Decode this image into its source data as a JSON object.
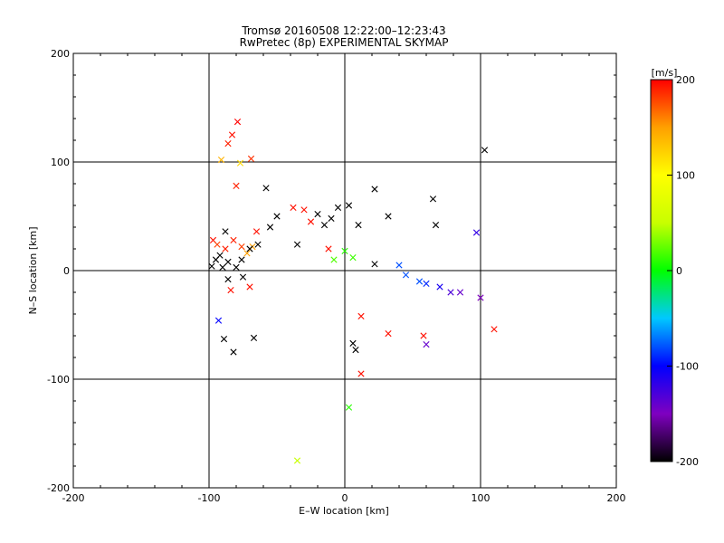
{
  "chart_data": {
    "type": "scatter",
    "title": "Tromsø 20160508 12:22:00–12:23:43",
    "subtitle": "RwPretec (8p) EXPERIMENTAL SKYMAP",
    "xlabel": "E–W location [km]",
    "ylabel": "N–S location [km]",
    "xlim": [
      -200,
      200
    ],
    "ylim": [
      -200,
      200
    ],
    "xticks": [
      "-200",
      "-100",
      "0",
      "100",
      "200"
    ],
    "yticks": [
      "-200",
      "-100",
      "0",
      "100",
      "200"
    ],
    "grid": true,
    "colorbar": {
      "label": "[m/s]",
      "range": [
        -200,
        200
      ],
      "ticks": [
        "-200",
        "-100",
        "0",
        "100",
        "200"
      ],
      "colors": [
        "#000000",
        "#7f00c0",
        "#0000ff",
        "#00c8ff",
        "#00ff00",
        "#c8ff00",
        "#ffff00",
        "#ffa000",
        "#ff0000"
      ]
    },
    "series": [
      {
        "marker": "cross",
        "points": [
          {
            "x": -79,
            "y": 137,
            "v": 200
          },
          {
            "x": -83,
            "y": 125,
            "v": 195
          },
          {
            "x": -86,
            "y": 117,
            "v": 190
          },
          {
            "x": -69,
            "y": 103,
            "v": 185
          },
          {
            "x": -91,
            "y": 102,
            "v": 140
          },
          {
            "x": -77,
            "y": 99,
            "v": 120
          },
          {
            "x": -80,
            "y": 78,
            "v": 190
          },
          {
            "x": -58,
            "y": 76,
            "v": -200
          },
          {
            "x": -38,
            "y": 58,
            "v": 195
          },
          {
            "x": -30,
            "y": 56,
            "v": 195
          },
          {
            "x": -25,
            "y": 45,
            "v": 195
          },
          {
            "x": -20,
            "y": 52,
            "v": -200
          },
          {
            "x": -5,
            "y": 58,
            "v": -200
          },
          {
            "x": 3,
            "y": 60,
            "v": -200
          },
          {
            "x": 22,
            "y": 75,
            "v": -200
          },
          {
            "x": 65,
            "y": 66,
            "v": -200
          },
          {
            "x": 103,
            "y": 111,
            "v": -200
          },
          {
            "x": 97,
            "y": 35,
            "v": -120
          },
          {
            "x": -50,
            "y": 50,
            "v": -200
          },
          {
            "x": -55,
            "y": 40,
            "v": -200
          },
          {
            "x": -65,
            "y": 36,
            "v": 195
          },
          {
            "x": -15,
            "y": 42,
            "v": -200
          },
          {
            "x": -10,
            "y": 48,
            "v": -200
          },
          {
            "x": 10,
            "y": 42,
            "v": -200
          },
          {
            "x": 32,
            "y": 50,
            "v": -200
          },
          {
            "x": 67,
            "y": 42,
            "v": -200
          },
          {
            "x": -12,
            "y": 20,
            "v": 195
          },
          {
            "x": -35,
            "y": 24,
            "v": -200
          },
          {
            "x": 22,
            "y": 6,
            "v": -200
          },
          {
            "x": 40,
            "y": 5,
            "v": -80
          },
          {
            "x": 45,
            "y": -4,
            "v": -80
          },
          {
            "x": 55,
            "y": -10,
            "v": -80
          },
          {
            "x": 60,
            "y": -12,
            "v": -90
          },
          {
            "x": 70,
            "y": -15,
            "v": -110
          },
          {
            "x": 85,
            "y": -20,
            "v": -140
          },
          {
            "x": 100,
            "y": -25,
            "v": -150
          },
          {
            "x": 78,
            "y": -20,
            "v": -130
          },
          {
            "x": -68,
            "y": 22,
            "v": 150
          },
          {
            "x": -72,
            "y": 16,
            "v": 150
          },
          {
            "x": -76,
            "y": 22,
            "v": 180
          },
          {
            "x": -82,
            "y": 28,
            "v": 190
          },
          {
            "x": -88,
            "y": 20,
            "v": 190
          },
          {
            "x": -92,
            "y": 14,
            "v": -200
          },
          {
            "x": -86,
            "y": 8,
            "v": -200
          },
          {
            "x": -80,
            "y": 3,
            "v": -200
          },
          {
            "x": -90,
            "y": 3,
            "v": -200
          },
          {
            "x": -76,
            "y": 10,
            "v": -200
          },
          {
            "x": -70,
            "y": 20,
            "v": -200
          },
          {
            "x": -64,
            "y": 24,
            "v": -200
          },
          {
            "x": -95,
            "y": 10,
            "v": -200
          },
          {
            "x": -98,
            "y": 4,
            "v": -200
          },
          {
            "x": -86,
            "y": -8,
            "v": -200
          },
          {
            "x": -75,
            "y": -6,
            "v": -200
          },
          {
            "x": -70,
            "y": -15,
            "v": 195
          },
          {
            "x": -84,
            "y": -18,
            "v": 195
          },
          {
            "x": -93,
            "y": -46,
            "v": -100
          },
          {
            "x": -89,
            "y": -63,
            "v": -200
          },
          {
            "x": -82,
            "y": -75,
            "v": -200
          },
          {
            "x": -67,
            "y": -62,
            "v": -200
          },
          {
            "x": 6,
            "y": -67,
            "v": -200
          },
          {
            "x": 8,
            "y": -73,
            "v": -200
          },
          {
            "x": 12,
            "y": -42,
            "v": 195
          },
          {
            "x": 12,
            "y": -95,
            "v": 195
          },
          {
            "x": 32,
            "y": -58,
            "v": 195
          },
          {
            "x": 58,
            "y": -60,
            "v": 195
          },
          {
            "x": 60,
            "y": -68,
            "v": -140
          },
          {
            "x": 110,
            "y": -54,
            "v": 195
          },
          {
            "x": 3,
            "y": -126,
            "v": 10
          },
          {
            "x": -35,
            "y": -175,
            "v": 50
          },
          {
            "x": -97,
            "y": 28,
            "v": 195
          },
          {
            "x": -88,
            "y": 36,
            "v": -200
          },
          {
            "x": -94,
            "y": 24,
            "v": 180
          },
          {
            "x": 0,
            "y": 18,
            "v": 10
          },
          {
            "x": -8,
            "y": 10,
            "v": 20
          },
          {
            "x": 6,
            "y": 12,
            "v": 15
          }
        ]
      }
    ]
  }
}
